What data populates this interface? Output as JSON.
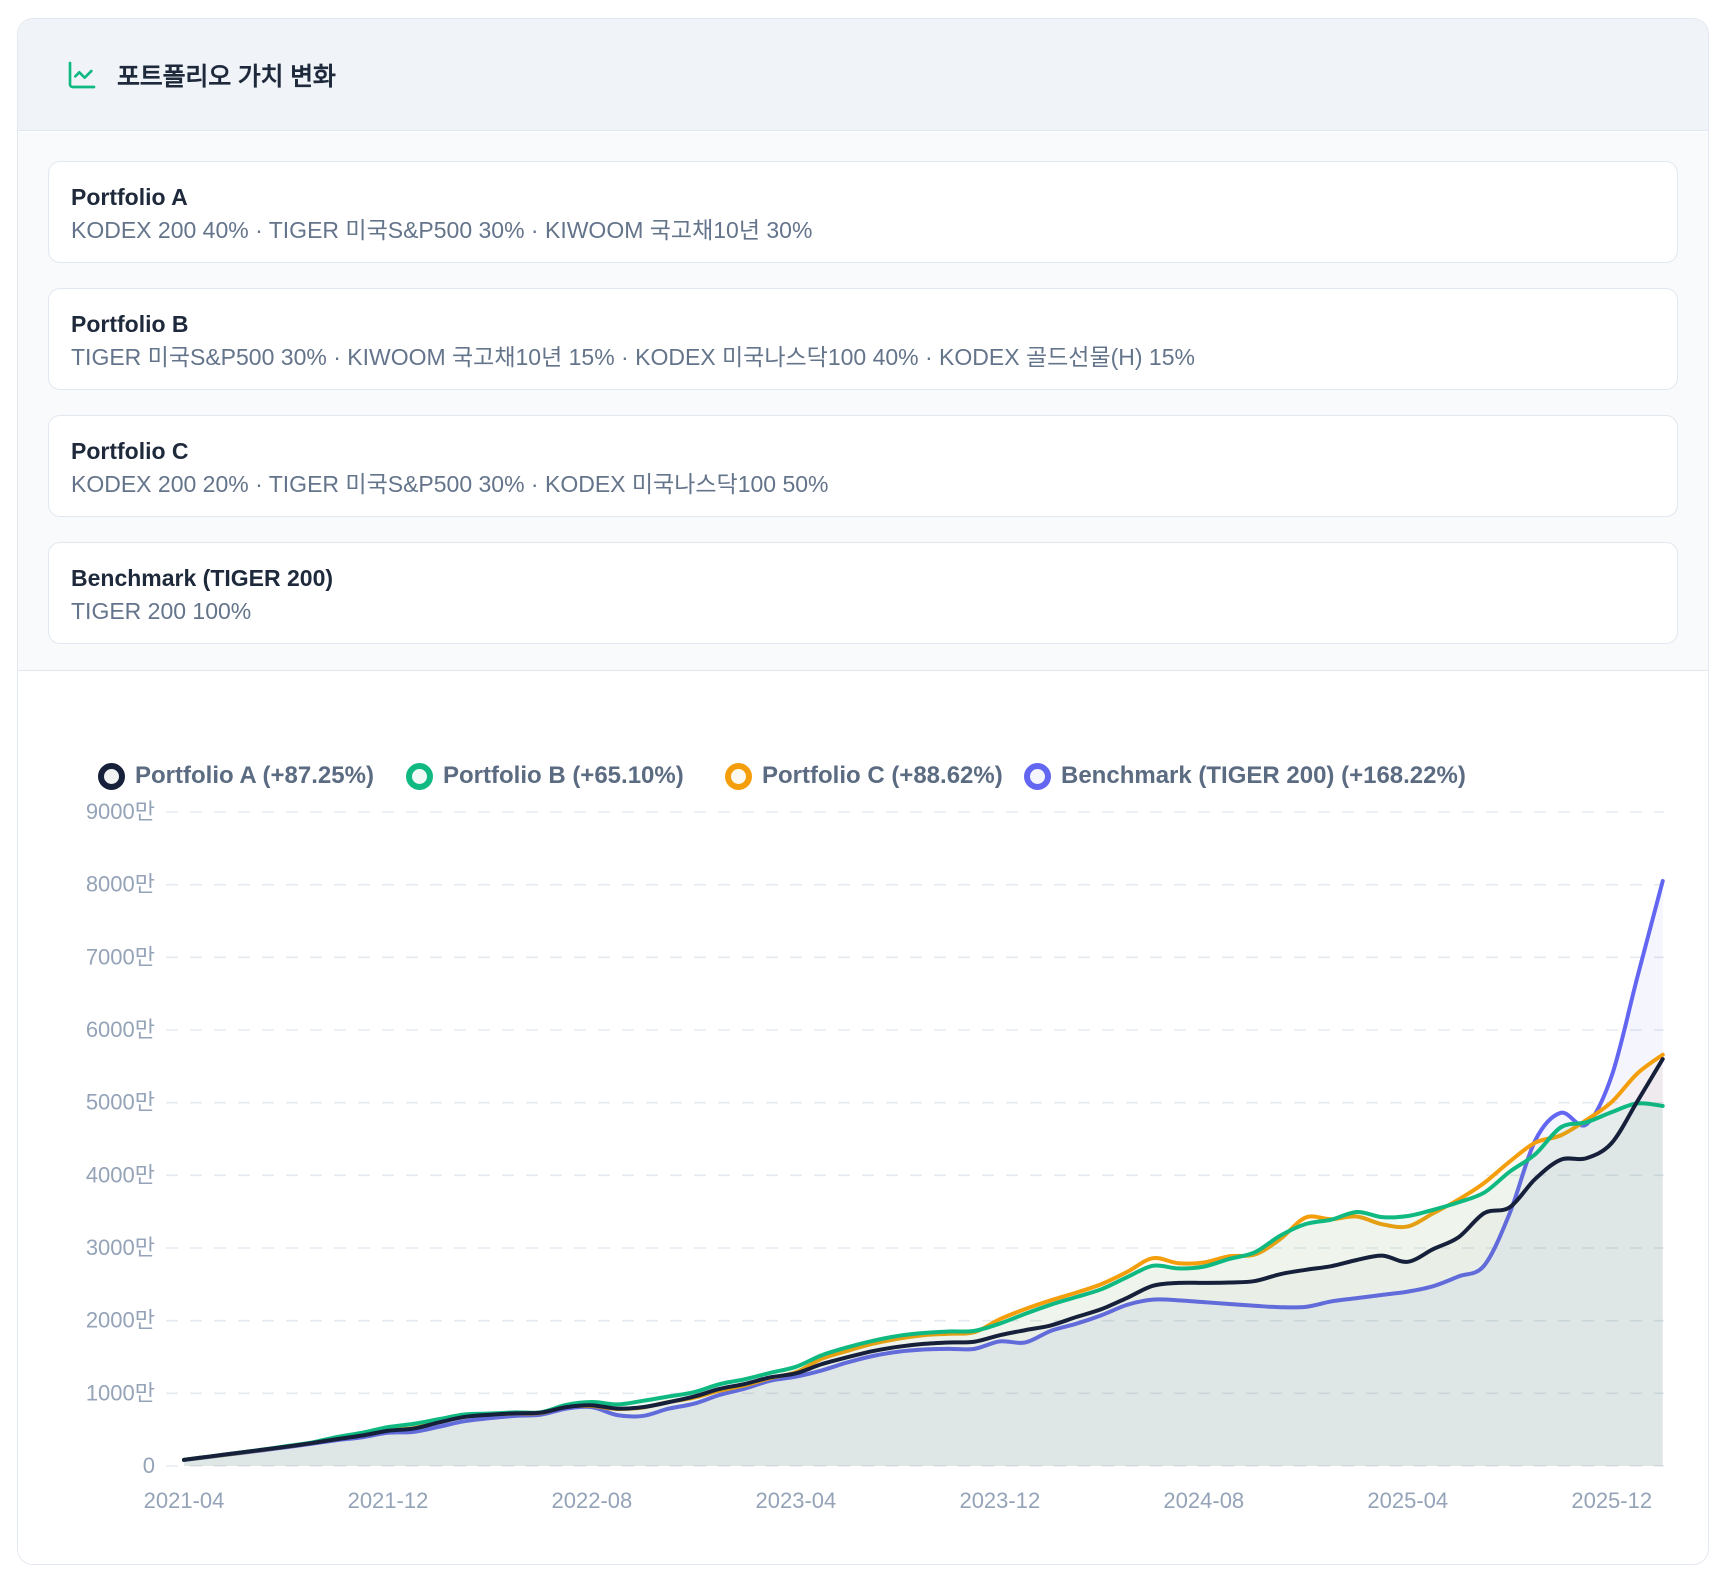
{
  "header": {
    "title": "포트폴리오 가치 변화",
    "icon": "chart-line-icon",
    "accent_color": "#10b981"
  },
  "portfolios": [
    {
      "name": "Portfolio A",
      "composition": "KODEX 200 40% · TIGER 미국S&P500 30% · KIWOOM 국고채10년 30%"
    },
    {
      "name": "Portfolio B",
      "composition": "TIGER 미국S&P500 30% · KIWOOM 국고채10년 15% · KODEX 미국나스닥100 40% · KODEX 골드선물(H) 15%"
    },
    {
      "name": "Portfolio C",
      "composition": "KODEX 200 20% · TIGER 미국S&P500 30% · KODEX 미국나스닥100 50%"
    },
    {
      "name": "Benchmark (TIGER 200)",
      "composition": "TIGER 200 100%"
    }
  ],
  "chart_data": {
    "type": "line",
    "title": "",
    "xlabel": "",
    "ylabel": "",
    "unit": "만",
    "x": [
      "2021-04",
      "2021-05",
      "2021-06",
      "2021-07",
      "2021-08",
      "2021-09",
      "2021-10",
      "2021-11",
      "2021-12",
      "2022-01",
      "2022-02",
      "2022-03",
      "2022-04",
      "2022-05",
      "2022-06",
      "2022-07",
      "2022-08",
      "2022-09",
      "2022-10",
      "2022-11",
      "2022-12",
      "2023-01",
      "2023-02",
      "2023-03",
      "2023-04",
      "2023-05",
      "2023-06",
      "2023-07",
      "2023-08",
      "2023-09",
      "2023-10",
      "2023-11",
      "2023-12",
      "2024-01",
      "2024-02",
      "2024-03",
      "2024-04",
      "2024-05",
      "2024-06",
      "2024-07",
      "2024-08",
      "2024-09",
      "2024-10",
      "2024-11",
      "2024-12",
      "2025-01",
      "2025-02",
      "2025-03",
      "2025-04",
      "2025-05",
      "2025-06",
      "2025-07",
      "2025-08",
      "2025-09",
      "2025-10",
      "2025-11",
      "2025-12",
      "2026-01",
      "2026-02"
    ],
    "x_tick_labels": [
      "2021-04",
      "2021-12",
      "2022-08",
      "2023-04",
      "2023-12",
      "2024-08",
      "2025-04",
      "2025-12"
    ],
    "x_tick_every": 8,
    "y_ticks": [
      0,
      1000,
      2000,
      3000,
      4000,
      5000,
      6000,
      7000,
      8000,
      9000
    ],
    "y_tick_labels": [
      "0",
      "1000만",
      "2000만",
      "3000만",
      "4000만",
      "5000만",
      "6000만",
      "7000만",
      "8000만",
      "9000만"
    ],
    "ylim": [
      0,
      9000
    ],
    "grid": "horizontal-dashed",
    "legend_position": "top",
    "series": [
      {
        "name": "Portfolio A",
        "legend_label": "Portfolio A (+87.25%)",
        "total_return_pct": 87.25,
        "color": "#16203a",
        "fill_alpha": 0.028,
        "values": [
          85,
          130,
          175,
          220,
          265,
          315,
          370,
          420,
          485,
          515,
          600,
          675,
          705,
          725,
          735,
          810,
          835,
          790,
          810,
          877,
          955,
          1060,
          1130,
          1220,
          1275,
          1400,
          1495,
          1580,
          1640,
          1680,
          1700,
          1710,
          1800,
          1870,
          1935,
          2050,
          2160,
          2315,
          2480,
          2520,
          2520,
          2525,
          2545,
          2640,
          2700,
          2750,
          2835,
          2895,
          2810,
          2985,
          3150,
          3480,
          3560,
          3950,
          4215,
          4235,
          4445,
          5015,
          5600
        ]
      },
      {
        "name": "Portfolio B",
        "legend_label": "Portfolio B (+65.10%)",
        "total_return_pct": 65.1,
        "color": "#10b981",
        "fill_alpha": 0.065,
        "values": [
          85,
          130,
          175,
          222,
          272,
          322,
          400,
          458,
          535,
          580,
          645,
          708,
          722,
          738,
          740,
          841,
          880,
          848,
          897,
          956,
          1016,
          1125,
          1194,
          1283,
          1365,
          1523,
          1632,
          1721,
          1790,
          1830,
          1851,
          1860,
          1960,
          2095,
          2220,
          2326,
          2435,
          2600,
          2755,
          2719,
          2744,
          2850,
          2940,
          3170,
          3330,
          3390,
          3496,
          3425,
          3440,
          3526,
          3630,
          3763,
          4050,
          4290,
          4660,
          4730,
          4870,
          4990,
          4955
        ]
      },
      {
        "name": "Portfolio C",
        "legend_label": "Portfolio C (+88.62%)",
        "total_return_pct": 88.62,
        "color": "#f59e0b",
        "fill_alpha": 0.048,
        "values": [
          85,
          128,
          172,
          218,
          266,
          316,
          378,
          425,
          492,
          520,
          608,
          682,
          708,
          722,
          730,
          820,
          825,
          785,
          805,
          880,
          940,
          1036,
          1110,
          1210,
          1290,
          1473,
          1582,
          1681,
          1751,
          1800,
          1820,
          1841,
          2020,
          2160,
          2280,
          2386,
          2505,
          2672,
          2860,
          2790,
          2800,
          2886,
          2910,
          3123,
          3420,
          3395,
          3434,
          3326,
          3297,
          3478,
          3668,
          3896,
          4190,
          4450,
          4550,
          4760,
          5010,
          5400,
          5660
        ]
      },
      {
        "name": "Benchmark (TIGER 200)",
        "legend_label": "Benchmark (TIGER 200) (+168.22%)",
        "total_return_pct": 168.22,
        "color": "#6366f1",
        "fill_alpha": 0.065,
        "values": [
          82,
          126,
          168,
          212,
          258,
          306,
          356,
          396,
          458,
          470,
          540,
          617,
          658,
          690,
          707,
          790,
          810,
          700,
          689,
          788,
          857,
          977,
          1065,
          1174,
          1230,
          1314,
          1423,
          1512,
          1572,
          1603,
          1612,
          1612,
          1715,
          1700,
          1860,
          1958,
          2077,
          2219,
          2290,
          2280,
          2255,
          2230,
          2205,
          2185,
          2190,
          2265,
          2310,
          2355,
          2400,
          2475,
          2610,
          2760,
          3480,
          4480,
          4860,
          4700,
          5370,
          6720,
          8050
        ]
      }
    ]
  }
}
